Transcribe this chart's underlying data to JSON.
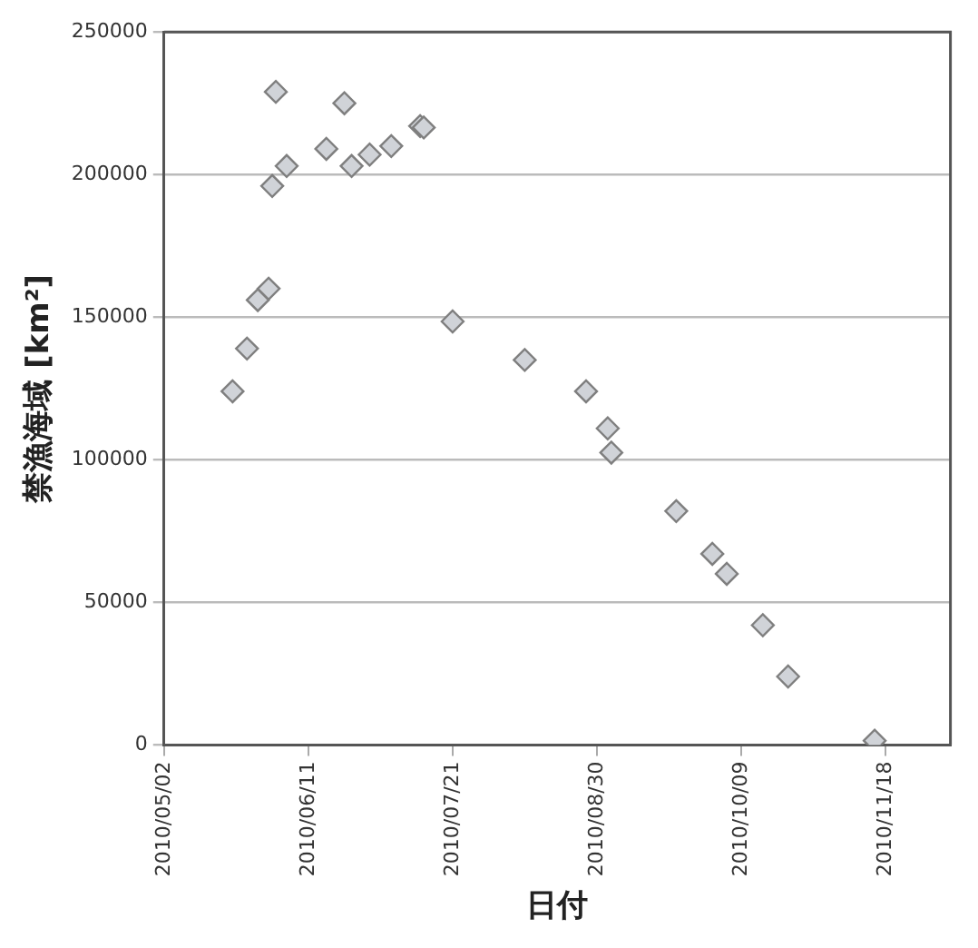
{
  "chart_data": {
    "type": "scatter",
    "xlabel": "日付",
    "ylabel": "禁漁海域 [km²]",
    "x": [
      "2010-05-21",
      "2010-05-25",
      "2010-05-28",
      "2010-05-31",
      "2010-06-01",
      "2010-06-02",
      "2010-06-05",
      "2010-06-16",
      "2010-06-21",
      "2010-06-23",
      "2010-06-28",
      "2010-07-04",
      "2010-07-12",
      "2010-07-13",
      "2010-07-21",
      "2010-08-10",
      "2010-08-27",
      "2010-09-02",
      "2010-09-03",
      "2010-09-21",
      "2010-10-01",
      "2010-10-05",
      "2010-10-15",
      "2010-10-22",
      "2010-11-15"
    ],
    "series": [
      {
        "color": "#d0d3d8",
        "values": [
          124000,
          139000,
          156000,
          160000,
          196000,
          229000,
          203000,
          209000,
          225000,
          203000,
          207000,
          210000,
          217000,
          216500,
          148500,
          135000,
          124000,
          111000,
          102500,
          82000,
          67000,
          60000,
          42000,
          24000,
          1500
        ]
      }
    ],
    "marker": "diamond",
    "grid": "y",
    "legend": false,
    "xlim": [
      "2010-05-02",
      "2010-12-06"
    ],
    "xticks": [
      {
        "value": "2010-05-02",
        "label": "2010/05/02"
      },
      {
        "value": "2010-06-11",
        "label": "2010/06/11"
      },
      {
        "value": "2010-07-21",
        "label": "2010/07/21"
      },
      {
        "value": "2010-08-30",
        "label": "2010/08/30"
      },
      {
        "value": "2010-10-09",
        "label": "2010/10/09"
      },
      {
        "value": "2010-11-18",
        "label": "2010/11/18"
      }
    ],
    "ylim": [
      0,
      250000
    ],
    "yticks": [
      0,
      50000,
      100000,
      150000,
      200000,
      250000
    ]
  }
}
